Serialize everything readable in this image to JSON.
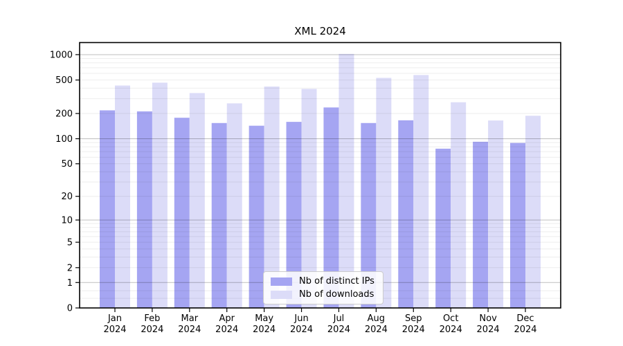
{
  "chart_data": {
    "type": "bar",
    "title": "XML 2024",
    "scale": "log1p",
    "xlabel": "",
    "ylabel": "",
    "ylim": [
      0,
      1380
    ],
    "yticks": [
      0,
      1,
      2,
      5,
      10,
      20,
      50,
      100,
      200,
      500,
      1000
    ],
    "grid": "horizontal major+minor",
    "legend_position": "lower center",
    "categories": [
      "Jan 2024",
      "Feb 2024",
      "Mar 2024",
      "Apr 2024",
      "May 2024",
      "Jun 2024",
      "Jul 2024",
      "Aug 2024",
      "Sep 2024",
      "Oct 2024",
      "Nov 2024",
      "Dec 2024"
    ],
    "series": [
      {
        "name": "Nb of distinct IPs",
        "color": "#a5a5f2",
        "values": [
          218,
          212,
          178,
          154,
          143,
          159,
          236,
          154,
          166,
          76,
          92,
          89
        ]
      },
      {
        "name": "Nb of downloads",
        "color": "#dcdcf8",
        "values": [
          430,
          465,
          350,
          264,
          418,
          392,
          1020,
          530,
          573,
          272,
          165,
          188
        ]
      }
    ]
  },
  "colors": {
    "major_gridline": "rgba(0,0,0,0.25)",
    "minor_gridline": "rgba(0,0,0,0.07)",
    "frame": "#000000",
    "background": "#ffffff"
  }
}
